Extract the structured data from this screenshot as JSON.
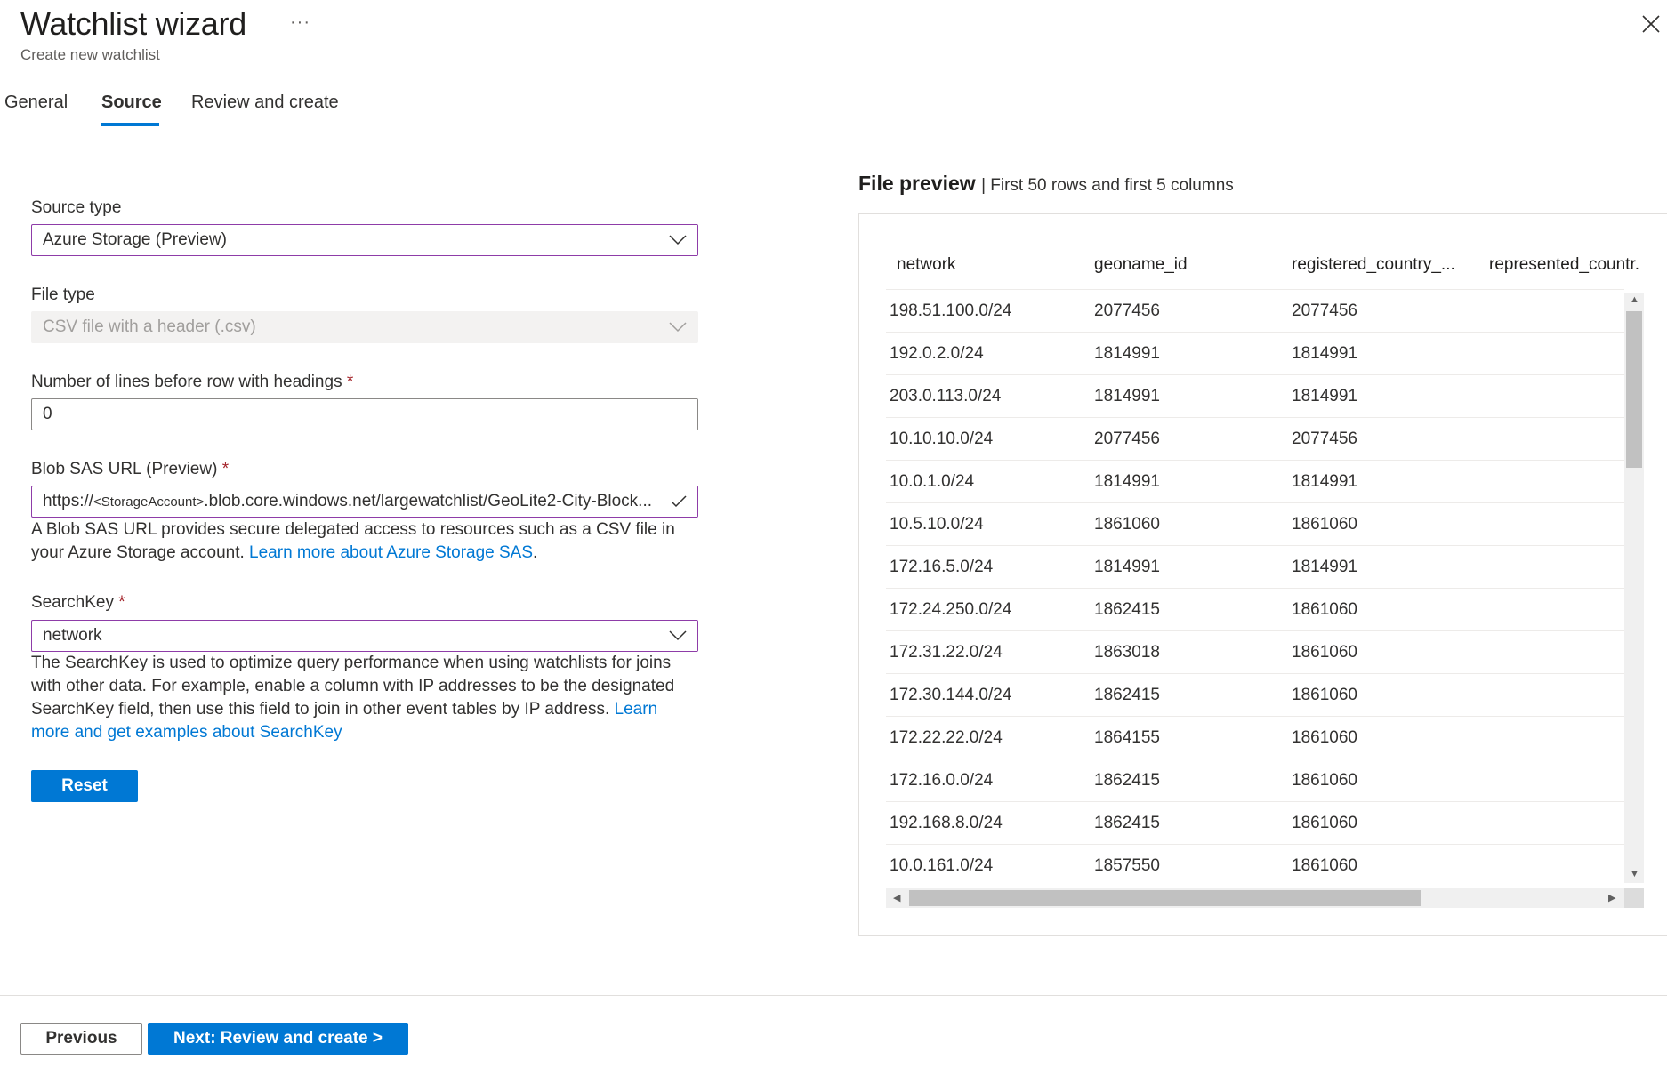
{
  "header": {
    "title": "Watchlist wizard",
    "more": "···",
    "subtitle": "Create new watchlist"
  },
  "tabs": [
    {
      "label": "General"
    },
    {
      "label": "Source",
      "active": true
    },
    {
      "label": "Review and create"
    }
  ],
  "form": {
    "source_type": {
      "label": "Source type",
      "value": "Azure Storage (Preview)"
    },
    "file_type": {
      "label": "File type",
      "value": "CSV file with a header (.csv)"
    },
    "lines_before": {
      "label": "Number of lines before row with headings",
      "required": "*",
      "value": "0"
    },
    "blob_url": {
      "label": "Blob SAS URL (Preview)",
      "required": "*",
      "value_prefix": "https://",
      "value_placeholder": "<StorageAccount>",
      "value_suffix": ".blob.core.windows.net/largewatchlist/GeoLite2-City-Block...",
      "help": "A Blob SAS URL provides secure delegated access to resources such as a CSV file in your Azure Storage account. ",
      "help_link": "Learn more about Azure Storage SAS",
      "help_end": "."
    },
    "search_key": {
      "label": "SearchKey",
      "required": "*",
      "value": "network",
      "help": "The SearchKey is used to optimize query performance when using watchlists for joins with other data. For example, enable a column with IP addresses to be the designated SearchKey field, then use this field to join in other event tables by IP address. ",
      "help_link": "Learn more and get examples about SearchKey"
    },
    "reset_label": "Reset"
  },
  "preview": {
    "title": "File preview",
    "subtitle": "| First 50 rows and first 5 columns",
    "columns": [
      "network",
      "geoname_id",
      "registered_country_...",
      "represented_countr."
    ],
    "rows": [
      [
        "198.51.100.0/24",
        "2077456",
        "2077456"
      ],
      [
        "192.0.2.0/24",
        "1814991",
        "1814991"
      ],
      [
        "203.0.113.0/24",
        "1814991",
        "1814991"
      ],
      [
        "10.10.10.0/24",
        "2077456",
        "2077456"
      ],
      [
        "10.0.1.0/24",
        "1814991",
        "1814991"
      ],
      [
        "10.5.10.0/24",
        "1861060",
        "1861060"
      ],
      [
        "172.16.5.0/24",
        "1814991",
        "1814991"
      ],
      [
        "172.24.250.0/24",
        "1862415",
        "1861060"
      ],
      [
        "172.31.22.0/24",
        "1863018",
        "1861060"
      ],
      [
        "172.30.144.0/24",
        "1862415",
        "1861060"
      ],
      [
        "172.22.22.0/24",
        "1864155",
        "1861060"
      ],
      [
        "172.16.0.0/24",
        "1862415",
        "1861060"
      ],
      [
        "192.168.8.0/24",
        "1862415",
        "1861060"
      ],
      [
        "10.0.161.0/24",
        "1857550",
        "1861060"
      ]
    ]
  },
  "footer": {
    "previous_label": "Previous",
    "next_label": "Next: Review and create >"
  },
  "colors": {
    "accent": "#0078d4",
    "focus_border": "#8e3ca8",
    "required": "#a4262c"
  }
}
